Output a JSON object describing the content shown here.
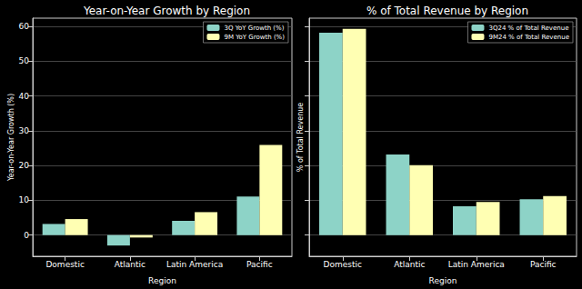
{
  "chart_data": [
    {
      "type": "bar",
      "title": "Year-on-Year Growth by Region",
      "x_label": "Region",
      "y_label": "Year-on-Year Growth (%)",
      "categories": [
        "Domestic",
        "Atlantic",
        "Latin America",
        "Pacific"
      ],
      "series": [
        {
          "name": "3Q YoY Growth (%)",
          "color": "#8dd3c7",
          "values": [
            3.2,
            -3.0,
            4.1,
            11.1
          ]
        },
        {
          "name": "9M YoY Growth (%)",
          "color": "#ffffb3",
          "values": [
            4.6,
            -0.7,
            6.6,
            25.9
          ]
        }
      ],
      "ylim": [
        -6.1,
        62.4
      ],
      "yticks": [
        0,
        10,
        20,
        30,
        40,
        50,
        60
      ],
      "grid": true,
      "legend": "upper right"
    },
    {
      "type": "bar",
      "title": "% of Total Revenue by Region",
      "x_label": "Region",
      "y_label": "% of Total Revenue",
      "categories": [
        "Domestic",
        "Atlantic",
        "Latin America",
        "Pacific"
      ],
      "series": [
        {
          "name": "3Q24 % of Total Revenue",
          "color": "#8dd3c7",
          "values": [
            58.2,
            23.2,
            8.3,
            10.3
          ]
        },
        {
          "name": "9M24 % of Total Revenue",
          "color": "#ffffb3",
          "values": [
            59.3,
            20.1,
            9.5,
            11.2
          ]
        }
      ],
      "ylim": [
        -6.1,
        62.4
      ],
      "yticks": [
        0,
        10,
        20,
        30,
        40,
        50,
        60
      ],
      "grid": true,
      "legend": "upper right",
      "tick_labels": "x"
    }
  ]
}
